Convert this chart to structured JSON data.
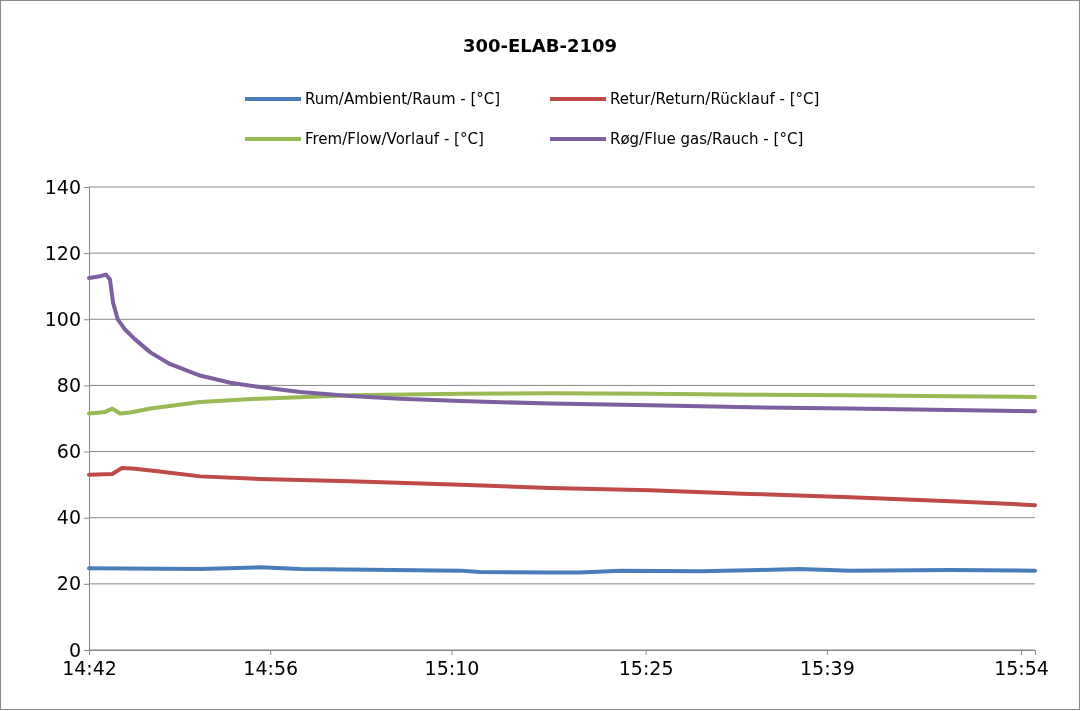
{
  "chart_data": {
    "type": "line",
    "title": "300-ELAB-2109",
    "xlim": [
      14.7,
      15.918
    ],
    "xticks": [
      {
        "value": 14.7,
        "label": "14:42"
      },
      {
        "value": 14.9333,
        "label": "14:56"
      },
      {
        "value": 15.1667,
        "label": "15:10"
      },
      {
        "value": 15.4167,
        "label": "15:25"
      },
      {
        "value": 15.65,
        "label": "15:39"
      },
      {
        "value": 15.9,
        "label": "15:54"
      }
    ],
    "ylim": [
      0,
      140
    ],
    "yticks": [
      0,
      20,
      40,
      60,
      80,
      100,
      120,
      140
    ],
    "grid": "y",
    "legend": "top",
    "marker": "none",
    "line_style": "solid",
    "series": [
      {
        "name": "Rum/Ambient/Raum - [°C]",
        "color": "#4a7ebb",
        "x": [
          14.7,
          14.843,
          14.92,
          14.972,
          15.178,
          15.203,
          15.294,
          15.332,
          15.384,
          15.487,
          15.564,
          15.615,
          15.68,
          15.809,
          15.918
        ],
        "values": [
          24.7,
          24.5,
          25,
          24.5,
          24,
          23.6,
          23.4,
          23.4,
          24,
          23.8,
          24.2,
          24.5,
          24,
          24.2,
          24
        ]
      },
      {
        "name": "Retur/Return/Rücklauf - [°C]",
        "color": "#be4b48",
        "x": [
          14.7,
          14.73,
          14.742,
          14.759,
          14.791,
          14.843,
          14.92,
          15.036,
          15.178,
          15.294,
          15.422,
          15.551,
          15.68,
          15.809,
          15.918
        ],
        "values": [
          53,
          53.2,
          55,
          54.8,
          54,
          52.5,
          51.7,
          51,
          50,
          49,
          48.3,
          47.2,
          46.2,
          45,
          43.8
        ]
      },
      {
        "name": "Frem/Flow/Vorlauf - [°C]",
        "color": "#98b954",
        "x": [
          14.7,
          14.721,
          14.73,
          14.74,
          14.753,
          14.779,
          14.843,
          14.92,
          15.036,
          15.178,
          15.294,
          15.422,
          15.551,
          15.68,
          15.809,
          15.918
        ],
        "values": [
          71.5,
          72,
          73,
          71.5,
          71.8,
          73,
          75,
          76,
          77,
          77.5,
          77.6,
          77.5,
          77.2,
          77,
          76.7,
          76.5
        ]
      },
      {
        "name": "Røg/Flue gas/Rauch - [°C]",
        "color": "#7d60a0",
        "x": [
          14.7,
          14.714,
          14.722,
          14.727,
          14.731,
          14.737,
          14.746,
          14.759,
          14.779,
          14.804,
          14.843,
          14.882,
          14.92,
          14.972,
          15.036,
          15.1,
          15.178,
          15.294,
          15.422,
          15.551,
          15.68,
          15.809,
          15.918
        ],
        "values": [
          112.5,
          113,
          113.5,
          112,
          105,
          100,
          97,
          94,
          90,
          86.5,
          83,
          80.8,
          79.5,
          78,
          76.8,
          76,
          75.3,
          74.5,
          74,
          73.4,
          73,
          72.6,
          72.2
        ]
      }
    ]
  }
}
